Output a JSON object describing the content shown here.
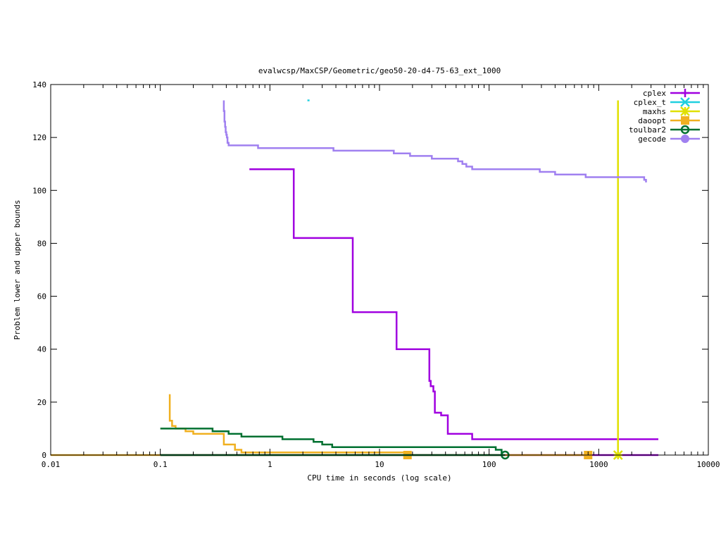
{
  "chart_data": {
    "type": "line",
    "title": "evalwcsp/MaxCSP/Geometric/geo50-20-d4-75-63_ext_1000",
    "xlabel": "CPU time in seconds (log scale)",
    "ylabel": "Problem lower and upper bounds",
    "xscale": "log",
    "xlim": [
      0.01,
      10000
    ],
    "ylim": [
      0,
      140
    ],
    "x_ticks": [
      0.01,
      0.1,
      1,
      10,
      100,
      1000,
      10000
    ],
    "x_tick_labels": [
      "0.01",
      "0.1",
      "1",
      "10",
      "100",
      "1000",
      "10000"
    ],
    "y_ticks": [
      0,
      20,
      40,
      60,
      80,
      100,
      120,
      140
    ],
    "y_tick_labels": [
      "0",
      "20",
      "40",
      "60",
      "80",
      "100",
      "120",
      "140"
    ],
    "grid": false,
    "legend_position": "top-right",
    "series": [
      {
        "name": "cplex",
        "color": "#a000e0",
        "marker": "plus",
        "lines": [
          [
            [
              0.65,
              108
            ],
            [
              1.65,
              108
            ],
            [
              1.65,
              82
            ],
            [
              5.7,
              82
            ],
            [
              5.7,
              54
            ],
            [
              14.3,
              54
            ],
            [
              14.3,
              40
            ],
            [
              28.5,
              40
            ],
            [
              28.5,
              28
            ],
            [
              29.3,
              28
            ],
            [
              29.3,
              26
            ],
            [
              31.0,
              26
            ],
            [
              31.0,
              24
            ],
            [
              32.0,
              24
            ],
            [
              32.0,
              16
            ],
            [
              36.5,
              16
            ],
            [
              36.5,
              15
            ],
            [
              42.0,
              15
            ],
            [
              42.0,
              8
            ],
            [
              70.0,
              8
            ],
            [
              70.0,
              6
            ],
            [
              3500,
              6
            ]
          ],
          [
            [
              0.1,
              0
            ],
            [
              3500,
              0
            ]
          ]
        ],
        "points": []
      },
      {
        "name": "cplex_t",
        "color": "#20d0e0",
        "marker": "x",
        "lines": [
          [
            [
              2.2,
              134
            ],
            [
              2.3,
              134
            ]
          ]
        ],
        "points": []
      },
      {
        "name": "maxhs",
        "color": "#e0e000",
        "marker": "star",
        "lines": [
          [
            [
              1500,
              134
            ],
            [
              1500,
              0
            ]
          ]
        ],
        "points": [
          [
            1500,
            0
          ]
        ]
      },
      {
        "name": "daoopt",
        "color": "#f0b020",
        "marker": "square",
        "lines": [
          [
            [
              0.122,
              23
            ],
            [
              0.122,
              13
            ],
            [
              0.128,
              13
            ],
            [
              0.128,
              11
            ],
            [
              0.138,
              11
            ],
            [
              0.138,
              10
            ],
            [
              0.17,
              10
            ],
            [
              0.17,
              9
            ],
            [
              0.2,
              9
            ],
            [
              0.2,
              8
            ],
            [
              0.38,
              8
            ],
            [
              0.38,
              4
            ],
            [
              0.48,
              4
            ],
            [
              0.48,
              2
            ],
            [
              0.55,
              2
            ],
            [
              0.55,
              1
            ],
            [
              18,
              1
            ],
            [
              18,
              0
            ]
          ],
          [
            [
              0.01,
              0
            ],
            [
              800,
              0
            ]
          ]
        ],
        "points": [
          [
            18,
            0
          ],
          [
            800,
            0
          ]
        ]
      },
      {
        "name": "toulbar2",
        "color": "#007030",
        "marker": "circle-open",
        "lines": [
          [
            [
              0.1,
              10
            ],
            [
              0.3,
              10
            ],
            [
              0.3,
              9
            ],
            [
              0.42,
              9
            ],
            [
              0.42,
              8
            ],
            [
              0.55,
              8
            ],
            [
              0.55,
              7
            ],
            [
              1.3,
              7
            ],
            [
              1.3,
              6
            ],
            [
              2.5,
              6
            ],
            [
              2.5,
              5
            ],
            [
              3.0,
              5
            ],
            [
              3.0,
              4
            ],
            [
              3.7,
              4
            ],
            [
              3.7,
              3
            ],
            [
              115,
              3
            ],
            [
              115,
              2
            ],
            [
              130,
              2
            ],
            [
              130,
              0
            ]
          ],
          [
            [
              0.1,
              0
            ],
            [
              140,
              0
            ]
          ]
        ],
        "points": [
          [
            140,
            0
          ]
        ]
      },
      {
        "name": "gecode",
        "color": "#a080f0",
        "marker": "circle",
        "lines": [
          [
            [
              0.38,
              134
            ],
            [
              0.38,
              130
            ],
            [
              0.385,
              130
            ],
            [
              0.385,
              126
            ],
            [
              0.39,
              126
            ],
            [
              0.39,
              124
            ],
            [
              0.395,
              124
            ],
            [
              0.395,
              122
            ],
            [
              0.4,
              122
            ],
            [
              0.4,
              121
            ],
            [
              0.405,
              121
            ],
            [
              0.405,
              120
            ],
            [
              0.41,
              120
            ],
            [
              0.41,
              118
            ],
            [
              0.42,
              118
            ],
            [
              0.42,
              117
            ],
            [
              0.78,
              117
            ],
            [
              0.78,
              116
            ],
            [
              3.8,
              116
            ],
            [
              3.8,
              115
            ],
            [
              13.5,
              115
            ],
            [
              13.5,
              114
            ],
            [
              19,
              114
            ],
            [
              19,
              113
            ],
            [
              30,
              113
            ],
            [
              30,
              112
            ],
            [
              52,
              112
            ],
            [
              52,
              111
            ],
            [
              57,
              111
            ],
            [
              57,
              110
            ],
            [
              62,
              110
            ],
            [
              62,
              109
            ],
            [
              70,
              109
            ],
            [
              70,
              108
            ],
            [
              290,
              108
            ],
            [
              290,
              107
            ],
            [
              400,
              107
            ],
            [
              400,
              106
            ],
            [
              760,
              106
            ],
            [
              760,
              105
            ],
            [
              2600,
              105
            ],
            [
              2600,
              104
            ],
            [
              2700,
              104
            ],
            [
              2700,
              103
            ]
          ]
        ],
        "points": []
      }
    ]
  }
}
